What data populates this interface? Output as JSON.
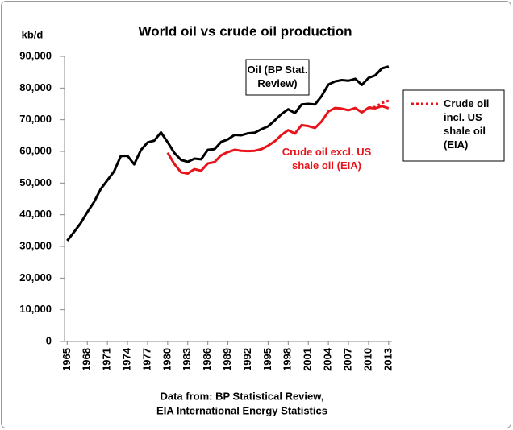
{
  "chart_data": {
    "type": "line",
    "title": "World oil vs crude oil production",
    "y_label": "kb/d",
    "caption": [
      "Data from: BP Statistical Review,",
      "EIA International Energy Statistics"
    ],
    "x": [
      1965,
      1966,
      1967,
      1968,
      1969,
      1970,
      1971,
      1972,
      1973,
      1974,
      1975,
      1976,
      1977,
      1978,
      1979,
      1980,
      1981,
      1982,
      1983,
      1984,
      1985,
      1986,
      1987,
      1988,
      1989,
      1990,
      1991,
      1992,
      1993,
      1994,
      1995,
      1996,
      1997,
      1998,
      1999,
      2000,
      2001,
      2002,
      2003,
      2004,
      2005,
      2006,
      2007,
      2008,
      2009,
      2010,
      2011,
      2012,
      2013
    ],
    "series": [
      {
        "name": "Oil (BP Stat. Review)",
        "color": "#000000",
        "dash": "solid",
        "values": [
          31800,
          34500,
          37300,
          40800,
          44000,
          48100,
          50900,
          53700,
          58500,
          58600,
          55900,
          60400,
          62800,
          63400,
          66000,
          62900,
          59500,
          57300,
          56700,
          57700,
          57500,
          60500,
          60700,
          63000,
          63800,
          65200,
          65100,
          65700,
          65900,
          67000,
          67900,
          69800,
          71800,
          73300,
          72100,
          74800,
          75000,
          74800,
          77500,
          81100,
          82100,
          82500,
          82300,
          82900,
          81000,
          83200,
          84000,
          86200,
          86800
        ]
      },
      {
        "name": "Crude oil excl. US shale oil (EIA)",
        "color": "#e8141b",
        "dash": "solid",
        "values": [
          null,
          null,
          null,
          null,
          null,
          null,
          null,
          null,
          null,
          null,
          null,
          null,
          null,
          null,
          null,
          59600,
          56000,
          53400,
          53000,
          54400,
          53900,
          56200,
          56600,
          58800,
          59800,
          60500,
          60200,
          60100,
          60200,
          60700,
          61800,
          63200,
          65200,
          66700,
          65600,
          68300,
          68000,
          67400,
          69500,
          72600,
          73700,
          73500,
          73000,
          73700,
          72300,
          73800,
          73600,
          74300,
          73600
        ]
      },
      {
        "name": "Crude oil incl. US shale oil (EIA)",
        "color": "#e8141b",
        "dash": "dotted",
        "values": [
          null,
          null,
          null,
          null,
          null,
          null,
          null,
          null,
          null,
          null,
          null,
          null,
          null,
          null,
          null,
          null,
          null,
          null,
          null,
          null,
          null,
          null,
          null,
          null,
          null,
          null,
          null,
          null,
          null,
          null,
          null,
          null,
          null,
          null,
          null,
          null,
          null,
          null,
          null,
          null,
          null,
          null,
          null,
          null,
          null,
          73800,
          74000,
          75300,
          76000
        ]
      }
    ],
    "xlim": [
      1964.6,
      2013.5
    ],
    "xticks": [
      1965,
      1968,
      1971,
      1974,
      1977,
      1980,
      1983,
      1986,
      1989,
      1992,
      1995,
      1998,
      2001,
      2004,
      2007,
      2010,
      2013
    ],
    "ylim": [
      0,
      90000
    ],
    "yticks": [
      0,
      {
        "value": 10000,
        "label": "10,000"
      },
      {
        "value": 20000,
        "label": "20,000"
      },
      {
        "value": 30000,
        "label": "30,000"
      },
      {
        "value": 40000,
        "label": "40,000"
      },
      {
        "value": 50000,
        "label": "50,000"
      },
      {
        "value": 60000,
        "label": "60,000"
      },
      {
        "value": 70000,
        "label": "70,000"
      },
      {
        "value": 80000,
        "label": "80,000"
      },
      {
        "value": 90000,
        "label": "90,000"
      }
    ],
    "grid": false
  }
}
